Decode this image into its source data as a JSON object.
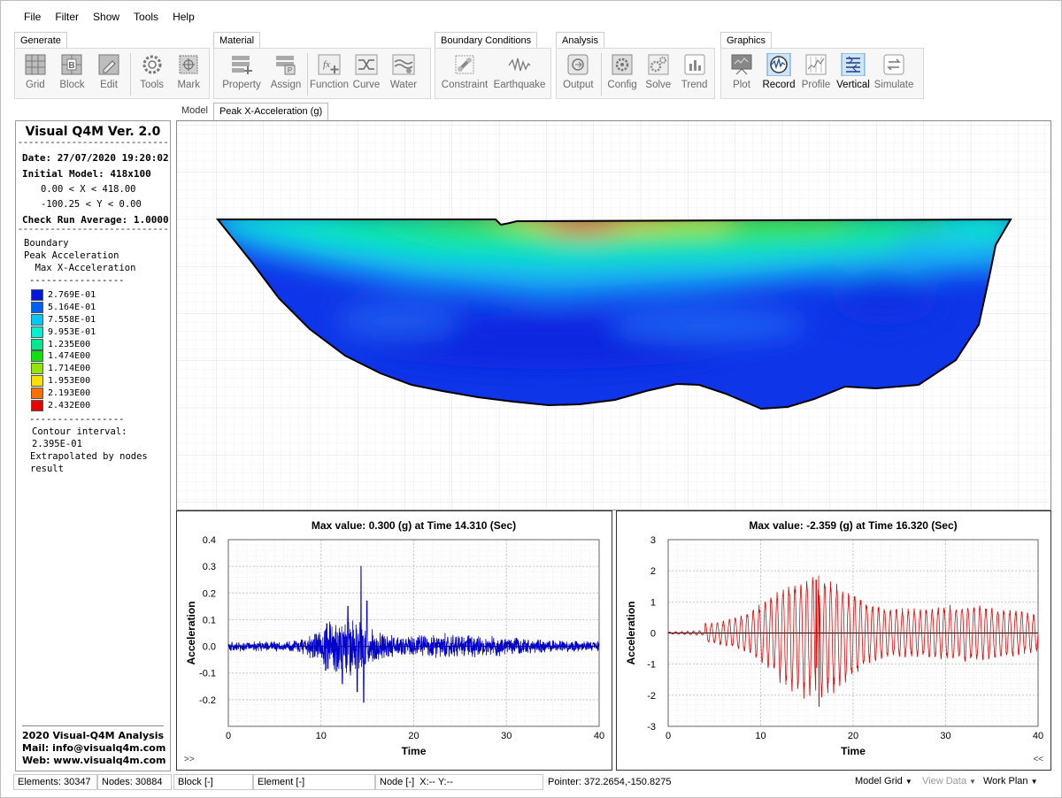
{
  "menu": [
    "File",
    "Filter",
    "Show",
    "Tools",
    "Help"
  ],
  "ribbon": {
    "generate": {
      "tab": "Generate",
      "buttons": [
        "Grid",
        "Block",
        "Edit",
        "Tools",
        "Mark"
      ]
    },
    "material": {
      "tab": "Material",
      "buttons": [
        "Property",
        "Assign",
        "Function",
        "Curve",
        "Water"
      ]
    },
    "boundary": {
      "tab": "Boundary Conditions",
      "buttons": [
        "Constraint",
        "Earthquake"
      ]
    },
    "analysis": {
      "tab": "Analysis",
      "buttons": [
        "Output",
        "Config",
        "Solve",
        "Trend"
      ]
    },
    "graphics": {
      "tab": "Graphics",
      "buttons": [
        "Plot",
        "Record",
        "Profile",
        "Vertical",
        "Simulate"
      ]
    }
  },
  "doc_tabs": [
    "Model",
    "Peak X-Acceleration (g)"
  ],
  "left_panel": {
    "title": "Visual Q4M Ver. 2.0",
    "dashes": "----------------------------",
    "date": "Date: 27/07/2020 19:20:02",
    "initial_model": "Initial Model: 418x100",
    "x_range": "0.00 < X < 418.00",
    "y_range": "-100.25 < Y < 0.00",
    "check_run": "Check Run Average: 1.0000",
    "lines": [
      "Boundary",
      "Peak Acceleration",
      "  Max X-Acceleration"
    ],
    "short_dashes": "-----------------",
    "legend": [
      {
        "label": "2.769E-01",
        "color": "#0018d8"
      },
      {
        "label": "5.164E-01",
        "color": "#0060f0"
      },
      {
        "label": "7.558E-01",
        "color": "#00c8f8"
      },
      {
        "label": "9.953E-01",
        "color": "#00f0d0"
      },
      {
        "label": "1.235E00",
        "color": "#00e890"
      },
      {
        "label": "1.474E00",
        "color": "#10e010"
      },
      {
        "label": "1.714E00",
        "color": "#90e800"
      },
      {
        "label": "1.953E00",
        "color": "#f8e000"
      },
      {
        "label": "2.193E00",
        "color": "#f87000"
      },
      {
        "label": "2.432E00",
        "color": "#e80000"
      }
    ],
    "contour": "Contour interval: 2.395E-01",
    "extrapolated": "Extrapolated by nodes result",
    "footer": [
      "2020 Visual-Q4M Analysis",
      "Mail: info@visualq4m.com",
      "Web: www.visualq4m.com"
    ]
  },
  "chart_data": [
    {
      "type": "line",
      "title": "Max value: 0.300 (g) at Time 14.310 (Sec)",
      "xlabel": "Time",
      "ylabel": "Acceleration",
      "xlim": [
        0,
        40
      ],
      "ylim": [
        -0.3,
        0.4
      ],
      "xticks": [
        0,
        10,
        20,
        30,
        40
      ],
      "yticks": [
        0.4,
        0.3,
        0.2,
        0.1,
        0.0,
        -0.1,
        -0.2
      ],
      "ytick_labels": [
        "0.4",
        "0.3",
        "0.2",
        "0.1",
        "0.0",
        "-0.1",
        "-0.2"
      ],
      "color": "#0000cc",
      "peak": {
        "t": 14.31,
        "v": 0.3
      },
      "min": {
        "t": 14.6,
        "v": -0.21
      },
      "grid": true,
      "corner_chevron": ">>"
    },
    {
      "type": "line",
      "title": "Max value: -2.359 (g) at Time 16.320 (Sec)",
      "xlabel": "Time",
      "ylabel": "Acceleration",
      "xlim": [
        0,
        40
      ],
      "ylim": [
        -3,
        3
      ],
      "xticks": [
        0,
        10,
        20,
        30,
        40
      ],
      "yticks": [
        3,
        2,
        1,
        0,
        -1,
        -2,
        -3
      ],
      "ytick_labels": [
        "3",
        "2",
        "1",
        "0",
        "-1",
        "-2",
        "-3"
      ],
      "color": "#ee0000",
      "peak": {
        "t": 16.32,
        "v": -2.359
      },
      "max": {
        "t": 16.0,
        "v": 1.7
      },
      "grid": true,
      "corner_chevron": "<<"
    }
  ],
  "status": {
    "elements": "Elements: 30347",
    "nodes": "Nodes: 30884",
    "block": "Block [-]",
    "element": "Element [-]",
    "node": "Node [-]  X:-- Y:--",
    "pointer": "Pointer: 372.2654,-150.8275",
    "model_grid": "Model Grid",
    "view_data": "View Data",
    "work_plan": "Work Plan"
  }
}
